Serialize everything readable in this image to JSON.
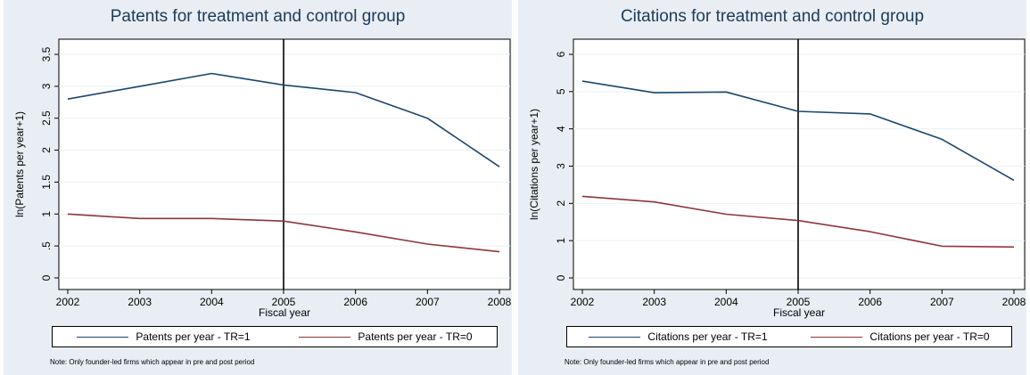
{
  "chart_data": [
    {
      "type": "line",
      "title": "Patents for treatment and control group",
      "xlabel": "Fiscal year",
      "ylabel": "ln(Patents per year+1)",
      "x": [
        2002,
        2003,
        2004,
        2005,
        2006,
        2007,
        2008
      ],
      "xticks": [
        "2002",
        "2003",
        "2004",
        "2005",
        "2006",
        "2007",
        "2008"
      ],
      "yticks": [
        "0",
        ".5",
        "1",
        "1.5",
        "2",
        "2.5",
        "3",
        "3.5"
      ],
      "ylim": [
        0,
        3.5
      ],
      "vline": 2005,
      "series": [
        {
          "name": "Patents per year - TR=1",
          "color": "#1a476f",
          "values": [
            2.8,
            3.0,
            3.2,
            3.02,
            2.9,
            2.5,
            1.74
          ]
        },
        {
          "name": "Patents per year - TR=0",
          "color": "#90353b",
          "values": [
            1.0,
            0.93,
            0.93,
            0.89,
            0.72,
            0.53,
            0.41
          ]
        }
      ],
      "legend_position": "bottom",
      "note": "Note: Only founder-led firms which appear in pre and post period"
    },
    {
      "type": "line",
      "title": "Citations for treatment and control group",
      "xlabel": "Fiscal year",
      "ylabel": "ln(Citations per year+1)",
      "x": [
        2002,
        2003,
        2004,
        2005,
        2006,
        2007,
        2008
      ],
      "xticks": [
        "2002",
        "2003",
        "2004",
        "2005",
        "2006",
        "2007",
        "2008"
      ],
      "yticks": [
        "0",
        "1",
        "2",
        "3",
        "4",
        "5",
        "6"
      ],
      "ylim": [
        0,
        6
      ],
      "vline": 2005,
      "series": [
        {
          "name": "Citations per year - TR=1",
          "color": "#1a476f",
          "values": [
            5.28,
            4.97,
            4.99,
            4.47,
            4.4,
            3.72,
            2.62
          ]
        },
        {
          "name": "Citations per year - TR=0",
          "color": "#90353b",
          "values": [
            2.19,
            2.04,
            1.71,
            1.54,
            1.24,
            0.85,
            0.83
          ]
        }
      ],
      "legend_position": "bottom",
      "note": "Note: Only founder-led firms which appear in pre and post period"
    }
  ]
}
